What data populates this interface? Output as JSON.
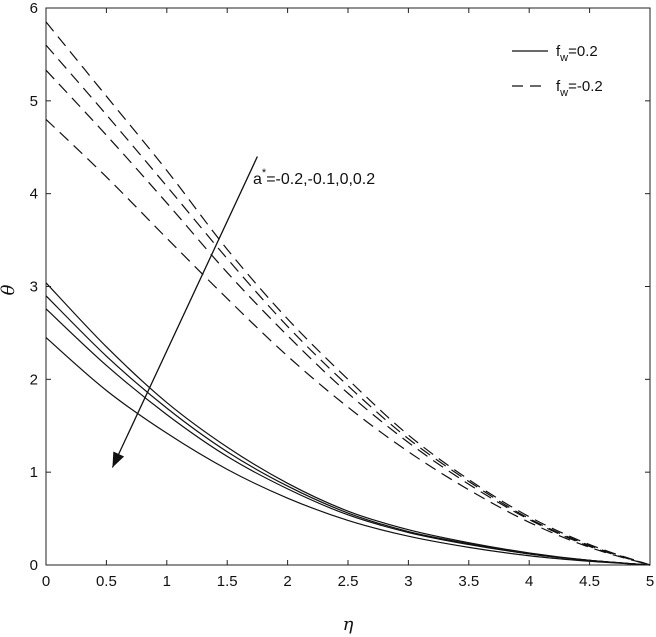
{
  "chart_data": {
    "type": "line",
    "xlabel": "η",
    "ylabel": "θ",
    "xlim": [
      0,
      5
    ],
    "ylim": [
      0,
      6
    ],
    "xticks": [
      "0",
      "0.5",
      "1",
      "1.5",
      "2",
      "2.5",
      "3",
      "3.5",
      "4",
      "4.5",
      "5"
    ],
    "yticks": [
      "0",
      "1",
      "2",
      "3",
      "4",
      "5",
      "6"
    ],
    "grid": false,
    "legend_position": "top-right",
    "legend": [
      {
        "prefix": "f",
        "sub": "w",
        "suffix": "=0.2",
        "style": "solid"
      },
      {
        "prefix": "f",
        "sub": "w",
        "suffix": "=-0.2",
        "style": "dashed"
      }
    ],
    "annotation": {
      "base": "a",
      "sup": "*",
      "text": "=-0.2,-0.1,0,0.2"
    },
    "x": [
      0,
      0.5,
      1,
      1.5,
      2,
      2.5,
      3,
      3.5,
      4,
      4.5,
      5
    ],
    "series": [
      {
        "group": "f_w=0.2",
        "style": "solid",
        "values": [
          3.04,
          2.35,
          1.75,
          1.27,
          0.88,
          0.58,
          0.38,
          0.24,
          0.13,
          0.05,
          0
        ]
      },
      {
        "group": "f_w=0.2",
        "style": "solid",
        "values": [
          2.9,
          2.25,
          1.69,
          1.22,
          0.85,
          0.56,
          0.36,
          0.23,
          0.12,
          0.05,
          0
        ]
      },
      {
        "group": "f_w=0.2",
        "style": "solid",
        "values": [
          2.76,
          2.15,
          1.62,
          1.17,
          0.82,
          0.54,
          0.35,
          0.22,
          0.12,
          0.05,
          0
        ]
      },
      {
        "group": "f_w=0.2",
        "style": "solid",
        "values": [
          2.45,
          1.88,
          1.42,
          1.03,
          0.72,
          0.48,
          0.31,
          0.19,
          0.1,
          0.04,
          0
        ]
      },
      {
        "group": "f_w=-0.2",
        "style": "dashed",
        "values": [
          5.85,
          5.05,
          4.25,
          3.4,
          2.65,
          2.0,
          1.4,
          0.92,
          0.52,
          0.22,
          0
        ]
      },
      {
        "group": "f_w=-0.2",
        "style": "dashed",
        "values": [
          5.6,
          4.85,
          4.08,
          3.3,
          2.57,
          1.93,
          1.36,
          0.9,
          0.5,
          0.21,
          0
        ]
      },
      {
        "group": "f_w=-0.2",
        "style": "dashed",
        "values": [
          5.33,
          4.63,
          3.9,
          3.15,
          2.47,
          1.85,
          1.32,
          0.87,
          0.49,
          0.2,
          0
        ]
      },
      {
        "group": "f_w=-0.2",
        "style": "dashed",
        "values": [
          4.8,
          4.18,
          3.52,
          2.87,
          2.25,
          1.7,
          1.22,
          0.81,
          0.46,
          0.19,
          0
        ]
      }
    ],
    "arrow": {
      "from": [
        1.75,
        4.4
      ],
      "to": [
        0.55,
        1.05
      ]
    }
  }
}
